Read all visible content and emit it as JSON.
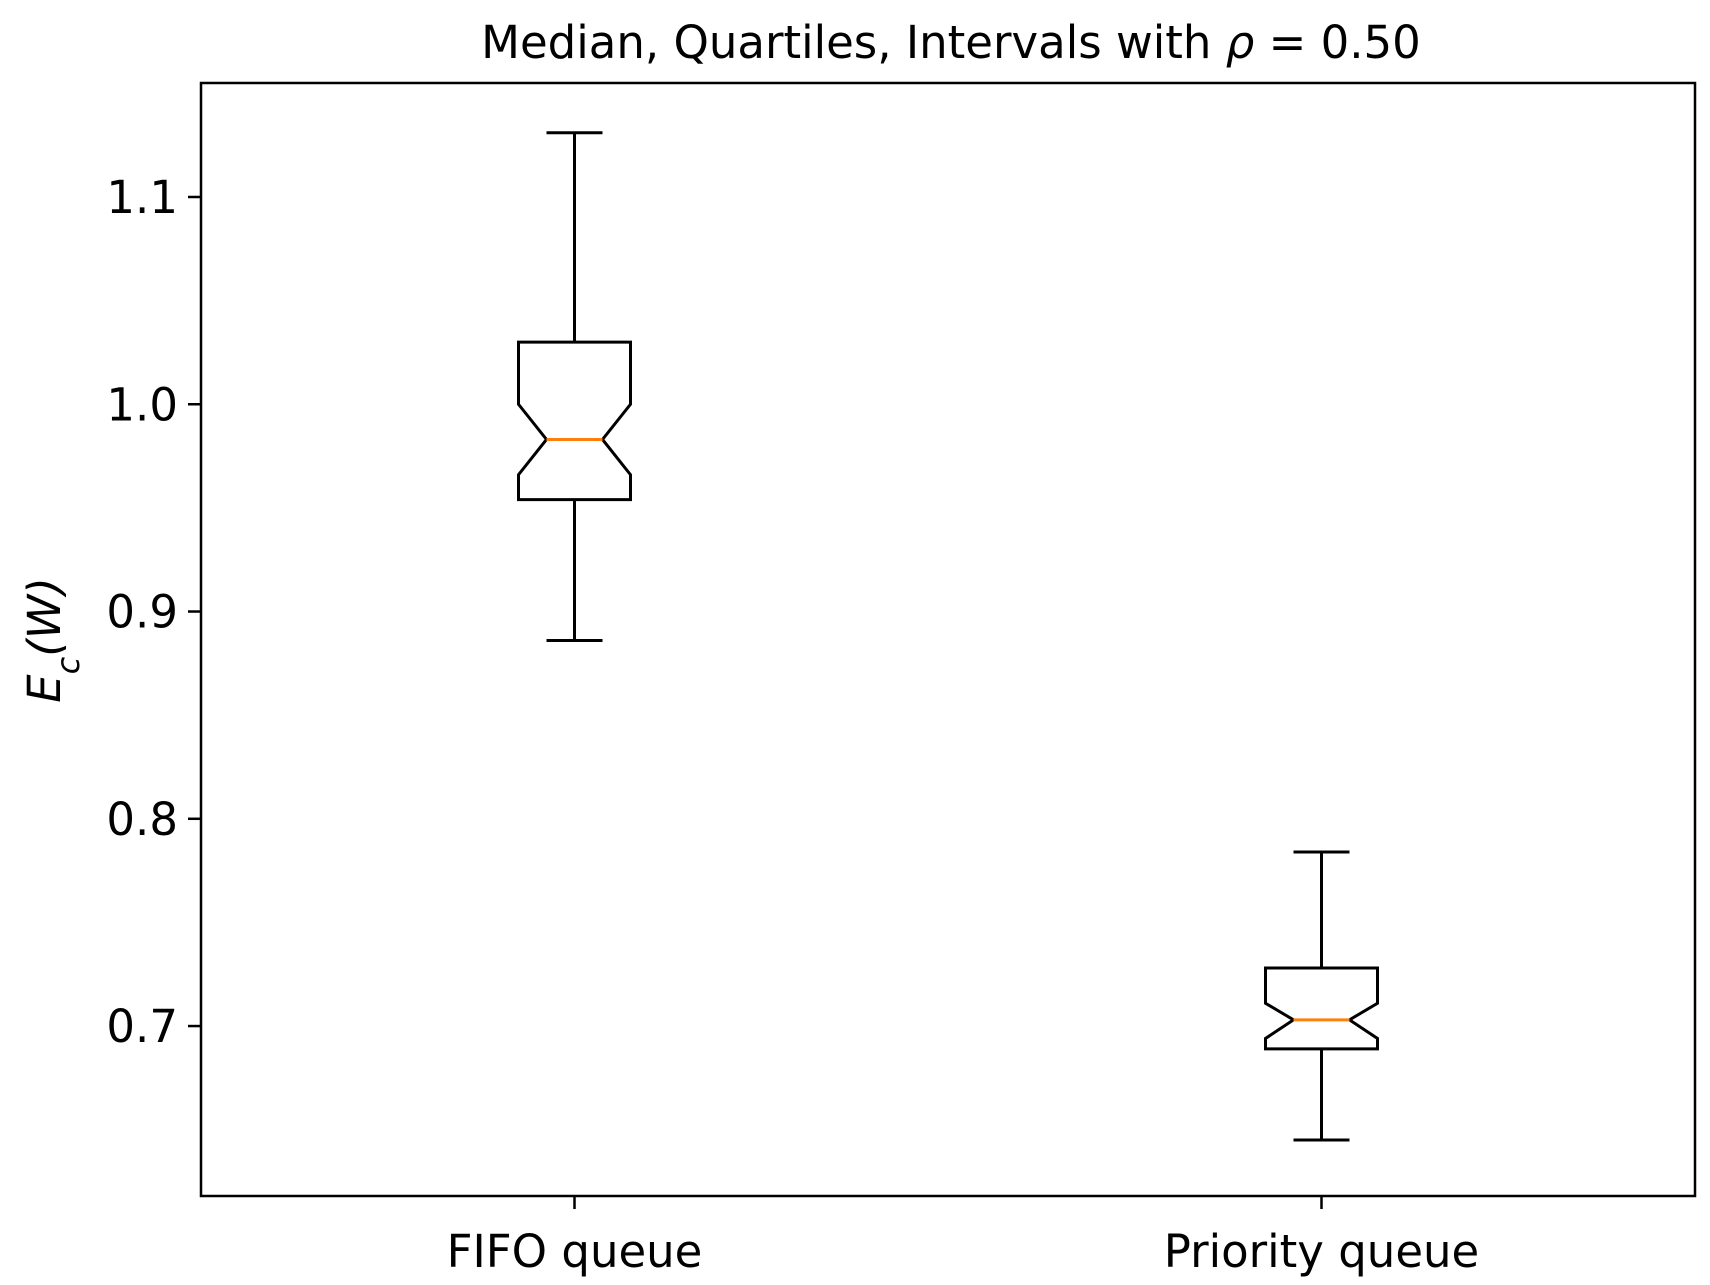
{
  "chart_data": {
    "type": "boxplot",
    "notched": true,
    "title": {
      "prefix": "Median, Quartiles, Intervals with ",
      "symbol": "ρ",
      "suffix": " = 0.50"
    },
    "ylabel": {
      "main": "E",
      "sub": "c",
      "rest": "(W)"
    },
    "xlabel": "",
    "ylim": [
      0.618,
      1.155
    ],
    "yticks": [
      0.7,
      0.8,
      0.9,
      1.0,
      1.1
    ],
    "ytick_labels": [
      "0.7",
      "0.8",
      "0.9",
      "1.0",
      "1.1"
    ],
    "categories": [
      "FIFO queue",
      "Priority queue"
    ],
    "boxes": [
      {
        "whisker_low": 0.886,
        "q1": 0.954,
        "median": 0.983,
        "q3": 1.03,
        "whisker_high": 1.131,
        "notch_low": 0.966,
        "notch_high": 1.0
      },
      {
        "whisker_low": 0.645,
        "q1": 0.689,
        "median": 0.703,
        "q3": 0.728,
        "whisker_high": 0.784,
        "notch_low": 0.694,
        "notch_high": 0.711
      }
    ],
    "grid": false,
    "colors": {
      "box": "#000000",
      "median": "#ff7f0e"
    }
  }
}
